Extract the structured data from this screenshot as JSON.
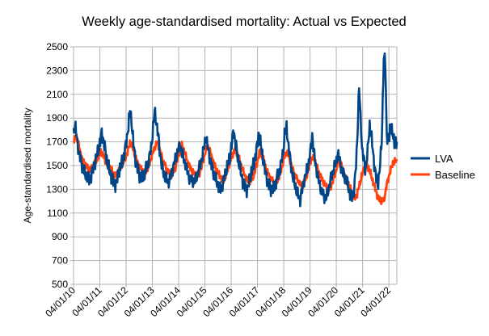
{
  "chart_data": {
    "type": "line",
    "title": "Weekly age-standardised mortality: Actual vs Expected",
    "xlabel": "",
    "ylabel": "Age-standardised mortality",
    "ylim": [
      500,
      2500
    ],
    "yticks": [
      500,
      700,
      900,
      1100,
      1300,
      1500,
      1700,
      1900,
      2100,
      2300,
      2500
    ],
    "xlim": [
      "2010-01-04",
      "2022-04-25"
    ],
    "xticks": [
      "04/01/10",
      "04/01/11",
      "04/01/12",
      "04/01/13",
      "04/01/14",
      "04/01/15",
      "04/01/16",
      "04/01/17",
      "04/01/18",
      "04/01/19",
      "04/01/20",
      "04/01/21",
      "04/01/22"
    ],
    "grid": true,
    "legend_position": "right",
    "series": [
      {
        "name": "LVA",
        "color": "#004586",
        "points": [
          [
            "2010-01-04",
            1780
          ],
          [
            "2010-01-25",
            1840
          ],
          [
            "2010-02-22",
            1720
          ],
          [
            "2010-03-22",
            1600
          ],
          [
            "2010-04-19",
            1540
          ],
          [
            "2010-05-17",
            1470
          ],
          [
            "2010-06-14",
            1420
          ],
          [
            "2010-07-12",
            1400
          ],
          [
            "2010-08-09",
            1380
          ],
          [
            "2010-09-06",
            1420
          ],
          [
            "2010-10-04",
            1480
          ],
          [
            "2010-11-01",
            1520
          ],
          [
            "2010-11-29",
            1600
          ],
          [
            "2010-12-27",
            1660
          ],
          [
            "2011-01-10",
            1700
          ],
          [
            "2011-01-31",
            1780
          ],
          [
            "2011-02-28",
            1700
          ],
          [
            "2011-03-28",
            1600
          ],
          [
            "2011-04-25",
            1500
          ],
          [
            "2011-05-23",
            1440
          ],
          [
            "2011-06-20",
            1400
          ],
          [
            "2011-07-18",
            1360
          ],
          [
            "2011-08-15",
            1350
          ],
          [
            "2011-09-12",
            1400
          ],
          [
            "2011-10-10",
            1470
          ],
          [
            "2011-11-07",
            1520
          ],
          [
            "2011-12-05",
            1580
          ],
          [
            "2012-01-02",
            1680
          ],
          [
            "2012-01-30",
            1800
          ],
          [
            "2012-02-27",
            1960
          ],
          [
            "2012-03-19",
            1880
          ],
          [
            "2012-04-16",
            1680
          ],
          [
            "2012-05-14",
            1560
          ],
          [
            "2012-06-11",
            1480
          ],
          [
            "2012-07-09",
            1420
          ],
          [
            "2012-08-06",
            1380
          ],
          [
            "2012-09-03",
            1400
          ],
          [
            "2012-10-01",
            1460
          ],
          [
            "2012-10-29",
            1520
          ],
          [
            "2012-11-26",
            1580
          ],
          [
            "2012-12-24",
            1680
          ],
          [
            "2013-01-14",
            1820
          ],
          [
            "2013-02-04",
            1960
          ],
          [
            "2013-02-25",
            1880
          ],
          [
            "2013-03-25",
            1760
          ],
          [
            "2013-04-22",
            1600
          ],
          [
            "2013-05-20",
            1480
          ],
          [
            "2013-06-17",
            1420
          ],
          [
            "2013-07-15",
            1380
          ],
          [
            "2013-08-12",
            1360
          ],
          [
            "2013-09-09",
            1400
          ],
          [
            "2013-10-07",
            1460
          ],
          [
            "2013-11-04",
            1520
          ],
          [
            "2013-12-02",
            1580
          ],
          [
            "2013-12-30",
            1640
          ],
          [
            "2014-01-27",
            1660
          ],
          [
            "2014-02-24",
            1600
          ],
          [
            "2014-03-24",
            1540
          ],
          [
            "2014-04-21",
            1480
          ],
          [
            "2014-05-19",
            1420
          ],
          [
            "2014-06-16",
            1380
          ],
          [
            "2014-07-14",
            1370
          ],
          [
            "2014-08-11",
            1360
          ],
          [
            "2014-09-08",
            1400
          ],
          [
            "2014-10-06",
            1460
          ],
          [
            "2014-11-03",
            1520
          ],
          [
            "2014-12-01",
            1580
          ],
          [
            "2014-12-29",
            1680
          ],
          [
            "2015-01-19",
            1740
          ],
          [
            "2015-02-09",
            1660
          ],
          [
            "2015-03-09",
            1580
          ],
          [
            "2015-04-06",
            1500
          ],
          [
            "2015-05-04",
            1440
          ],
          [
            "2015-06-01",
            1380
          ],
          [
            "2015-06-29",
            1340
          ],
          [
            "2015-07-27",
            1300
          ],
          [
            "2015-08-24",
            1320
          ],
          [
            "2015-09-21",
            1380
          ],
          [
            "2015-10-19",
            1440
          ],
          [
            "2015-11-16",
            1500
          ],
          [
            "2015-12-14",
            1560
          ],
          [
            "2016-01-11",
            1680
          ],
          [
            "2016-02-08",
            1800
          ],
          [
            "2016-02-29",
            1700
          ],
          [
            "2016-03-28",
            1600
          ],
          [
            "2016-04-25",
            1500
          ],
          [
            "2016-05-23",
            1420
          ],
          [
            "2016-06-20",
            1360
          ],
          [
            "2016-07-18",
            1320
          ],
          [
            "2016-08-15",
            1300
          ],
          [
            "2016-09-12",
            1360
          ],
          [
            "2016-10-10",
            1440
          ],
          [
            "2016-11-07",
            1500
          ],
          [
            "2016-12-05",
            1580
          ],
          [
            "2017-01-02",
            1680
          ],
          [
            "2017-01-23",
            1780
          ],
          [
            "2017-02-20",
            1660
          ],
          [
            "2017-03-20",
            1560
          ],
          [
            "2017-04-17",
            1460
          ],
          [
            "2017-05-15",
            1400
          ],
          [
            "2017-06-12",
            1340
          ],
          [
            "2017-07-10",
            1300
          ],
          [
            "2017-08-07",
            1280
          ],
          [
            "2017-09-04",
            1320
          ],
          [
            "2017-10-02",
            1400
          ],
          [
            "2017-10-30",
            1460
          ],
          [
            "2017-11-27",
            1520
          ],
          [
            "2017-12-25",
            1600
          ],
          [
            "2018-01-15",
            1760
          ],
          [
            "2018-02-12",
            1820
          ],
          [
            "2018-03-05",
            1700
          ],
          [
            "2018-04-02",
            1560
          ],
          [
            "2018-04-30",
            1440
          ],
          [
            "2018-05-28",
            1360
          ],
          [
            "2018-06-25",
            1300
          ],
          [
            "2018-07-23",
            1240
          ],
          [
            "2018-08-20",
            1220
          ],
          [
            "2018-09-17",
            1300
          ],
          [
            "2018-10-15",
            1380
          ],
          [
            "2018-11-12",
            1440
          ],
          [
            "2018-12-10",
            1500
          ],
          [
            "2019-01-07",
            1600
          ],
          [
            "2019-02-04",
            1760
          ],
          [
            "2019-02-25",
            1620
          ],
          [
            "2019-03-25",
            1500
          ],
          [
            "2019-04-22",
            1400
          ],
          [
            "2019-05-20",
            1340
          ],
          [
            "2019-06-17",
            1280
          ],
          [
            "2019-07-15",
            1240
          ],
          [
            "2019-08-12",
            1220
          ],
          [
            "2019-09-09",
            1280
          ],
          [
            "2019-10-07",
            1360
          ],
          [
            "2019-11-04",
            1420
          ],
          [
            "2019-12-02",
            1480
          ],
          [
            "2019-12-30",
            1520
          ],
          [
            "2020-01-27",
            1600
          ],
          [
            "2020-02-24",
            1540
          ],
          [
            "2020-03-23",
            1460
          ],
          [
            "2020-04-20",
            1420
          ],
          [
            "2020-05-18",
            1380
          ],
          [
            "2020-06-15",
            1320
          ],
          [
            "2020-07-13",
            1260
          ],
          [
            "2020-08-10",
            1240
          ],
          [
            "2020-09-07",
            1300
          ],
          [
            "2020-10-05",
            1500
          ],
          [
            "2020-10-26",
            1800
          ],
          [
            "2020-11-16",
            2160
          ],
          [
            "2020-12-07",
            1900
          ],
          [
            "2020-12-28",
            1640
          ],
          [
            "2021-01-18",
            1560
          ],
          [
            "2021-02-15",
            1460
          ],
          [
            "2021-03-15",
            1620
          ],
          [
            "2021-04-12",
            1840
          ],
          [
            "2021-05-10",
            1720
          ],
          [
            "2021-06-07",
            1560
          ],
          [
            "2021-07-05",
            1420
          ],
          [
            "2021-08-02",
            1340
          ],
          [
            "2021-08-30",
            1460
          ],
          [
            "2021-09-27",
            1720
          ],
          [
            "2021-10-25",
            2400
          ],
          [
            "2021-11-15",
            2380
          ],
          [
            "2021-12-06",
            1760
          ],
          [
            "2022-01-03",
            1700
          ],
          [
            "2022-01-24",
            1860
          ],
          [
            "2022-02-21",
            1760
          ],
          [
            "2022-03-21",
            1700
          ],
          [
            "2022-04-25",
            1680
          ]
        ]
      },
      {
        "name": "Baseline",
        "color": "#ff420e",
        "points": [
          [
            "2010-01-04",
            1700
          ],
          [
            "2010-02-15",
            1740
          ],
          [
            "2010-03-29",
            1640
          ],
          [
            "2010-05-10",
            1540
          ],
          [
            "2010-06-21",
            1500
          ],
          [
            "2010-08-02",
            1460
          ],
          [
            "2010-09-13",
            1480
          ],
          [
            "2010-10-25",
            1520
          ],
          [
            "2010-12-06",
            1560
          ],
          [
            "2011-01-17",
            1620
          ],
          [
            "2011-02-28",
            1580
          ],
          [
            "2011-04-11",
            1520
          ],
          [
            "2011-05-23",
            1480
          ],
          [
            "2011-07-04",
            1440
          ],
          [
            "2011-08-15",
            1420
          ],
          [
            "2011-09-26",
            1460
          ],
          [
            "2011-11-07",
            1500
          ],
          [
            "2011-12-19",
            1560
          ],
          [
            "2012-01-30",
            1620
          ],
          [
            "2012-02-27",
            1700
          ],
          [
            "2012-04-09",
            1640
          ],
          [
            "2012-05-21",
            1560
          ],
          [
            "2012-07-02",
            1500
          ],
          [
            "2012-08-13",
            1460
          ],
          [
            "2012-09-24",
            1440
          ],
          [
            "2012-11-05",
            1480
          ],
          [
            "2012-12-17",
            1560
          ],
          [
            "2013-01-28",
            1640
          ],
          [
            "2013-03-11",
            1700
          ],
          [
            "2013-04-22",
            1620
          ],
          [
            "2013-06-03",
            1540
          ],
          [
            "2013-07-15",
            1480
          ],
          [
            "2013-08-26",
            1440
          ],
          [
            "2013-10-07",
            1420
          ],
          [
            "2013-11-18",
            1480
          ],
          [
            "2013-12-30",
            1580
          ],
          [
            "2014-02-10",
            1680
          ],
          [
            "2014-03-24",
            1620
          ],
          [
            "2014-05-05",
            1540
          ],
          [
            "2014-06-16",
            1480
          ],
          [
            "2014-07-28",
            1440
          ],
          [
            "2014-09-08",
            1400
          ],
          [
            "2014-10-20",
            1440
          ],
          [
            "2014-12-01",
            1520
          ],
          [
            "2015-01-12",
            1620
          ],
          [
            "2015-02-23",
            1660
          ],
          [
            "2015-04-06",
            1580
          ],
          [
            "2015-05-18",
            1500
          ],
          [
            "2015-06-29",
            1440
          ],
          [
            "2015-08-10",
            1400
          ],
          [
            "2015-09-21",
            1380
          ],
          [
            "2015-11-02",
            1440
          ],
          [
            "2015-12-14",
            1520
          ],
          [
            "2016-01-25",
            1600
          ],
          [
            "2016-03-07",
            1640
          ],
          [
            "2016-04-18",
            1560
          ],
          [
            "2016-05-30",
            1480
          ],
          [
            "2016-07-11",
            1420
          ],
          [
            "2016-08-22",
            1380
          ],
          [
            "2016-10-03",
            1360
          ],
          [
            "2016-11-14",
            1420
          ],
          [
            "2016-12-26",
            1520
          ],
          [
            "2017-02-06",
            1620
          ],
          [
            "2017-03-20",
            1560
          ],
          [
            "2017-05-01",
            1480
          ],
          [
            "2017-06-12",
            1420
          ],
          [
            "2017-07-24",
            1380
          ],
          [
            "2017-09-04",
            1340
          ],
          [
            "2017-10-16",
            1380
          ],
          [
            "2017-11-27",
            1460
          ],
          [
            "2018-01-08",
            1560
          ],
          [
            "2018-02-19",
            1620
          ],
          [
            "2018-04-02",
            1540
          ],
          [
            "2018-05-14",
            1460
          ],
          [
            "2018-06-25",
            1400
          ],
          [
            "2018-08-06",
            1360
          ],
          [
            "2018-09-17",
            1320
          ],
          [
            "2018-10-29",
            1380
          ],
          [
            "2018-12-10",
            1460
          ],
          [
            "2019-01-21",
            1560
          ],
          [
            "2019-03-04",
            1560
          ],
          [
            "2019-04-15",
            1480
          ],
          [
            "2019-05-27",
            1420
          ],
          [
            "2019-07-08",
            1360
          ],
          [
            "2019-08-19",
            1320
          ],
          [
            "2019-09-30",
            1300
          ],
          [
            "2019-11-11",
            1360
          ],
          [
            "2019-12-23",
            1440
          ],
          [
            "2020-02-03",
            1540
          ],
          [
            "2020-03-16",
            1500
          ],
          [
            "2020-04-27",
            1420
          ],
          [
            "2020-06-08",
            1360
          ],
          [
            "2020-07-20",
            1300
          ],
          [
            "2020-08-31",
            1240
          ],
          [
            "2020-10-12",
            1240
          ],
          [
            "2020-11-23",
            1340
          ],
          [
            "2021-01-04",
            1440
          ],
          [
            "2021-02-15",
            1520
          ],
          [
            "2021-03-29",
            1480
          ],
          [
            "2021-05-10",
            1400
          ],
          [
            "2021-06-21",
            1320
          ],
          [
            "2021-08-02",
            1240
          ],
          [
            "2021-09-13",
            1200
          ],
          [
            "2021-10-25",
            1200
          ],
          [
            "2021-12-06",
            1340
          ],
          [
            "2022-01-17",
            1440
          ],
          [
            "2022-02-28",
            1520
          ],
          [
            "2022-04-25",
            1540
          ]
        ]
      }
    ]
  }
}
